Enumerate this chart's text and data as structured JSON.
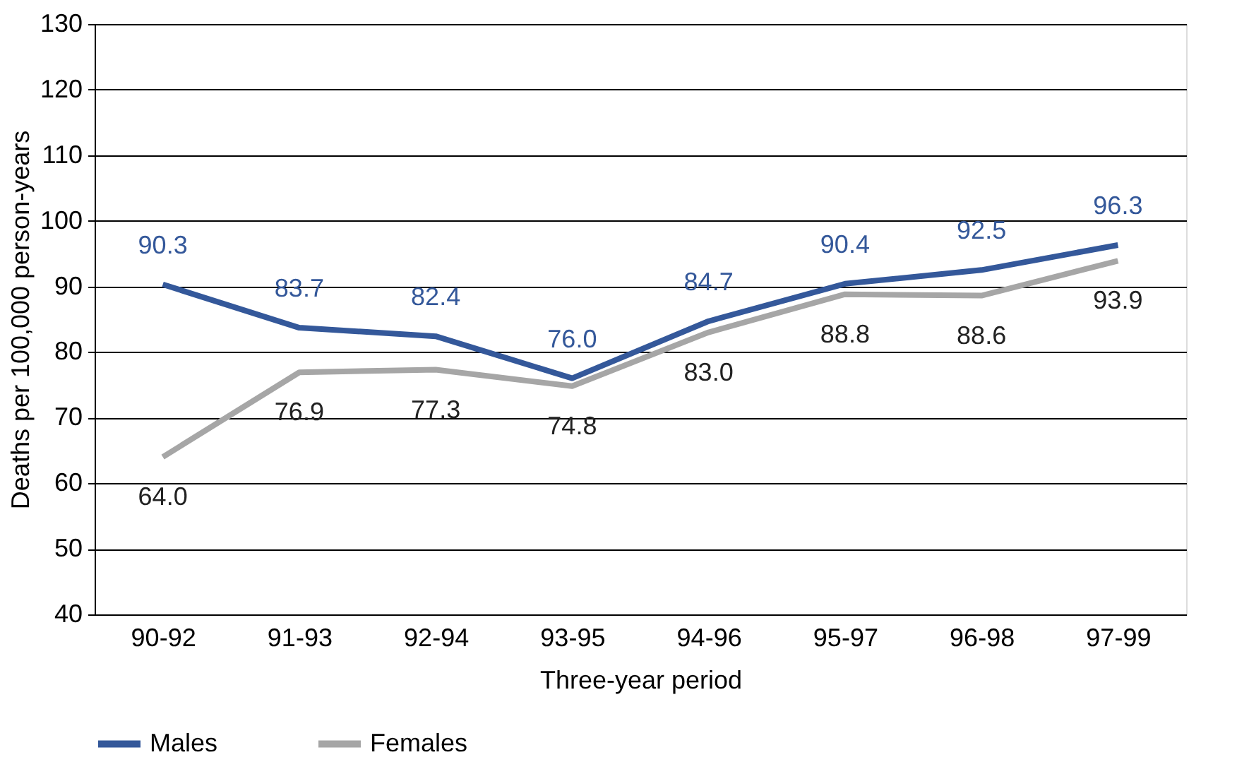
{
  "chart_data": {
    "type": "line",
    "xlabel": "Three-year period",
    "ylabel": "Deaths per 100,000 person-years",
    "categories": [
      "90-92",
      "91-93",
      "92-94",
      "93-95",
      "94-96",
      "95-97",
      "96-98",
      "97-99"
    ],
    "series": [
      {
        "name": "Males",
        "color": "#34589a",
        "values": [
          90.3,
          83.7,
          82.4,
          76.0,
          84.7,
          90.4,
          92.5,
          96.3
        ],
        "value_labels": [
          "90.3",
          "83.7",
          "82.4",
          "76.0",
          "84.7",
          "90.4",
          "92.5",
          "96.3"
        ]
      },
      {
        "name": "Females",
        "color": "#a6a6a6",
        "values": [
          64.0,
          76.9,
          77.3,
          74.8,
          83.0,
          88.8,
          88.6,
          93.9
        ],
        "value_labels": [
          "64.0",
          "76.9",
          "77.3",
          "74.8",
          "83.0",
          "88.8",
          "88.6",
          "93.9"
        ]
      }
    ],
    "ylim": [
      40,
      130
    ],
    "yticks": [
      40,
      50,
      60,
      70,
      80,
      90,
      100,
      110,
      120,
      130
    ],
    "grid": "y",
    "legend": "bottom",
    "marker": "none",
    "line_style": "solid"
  }
}
